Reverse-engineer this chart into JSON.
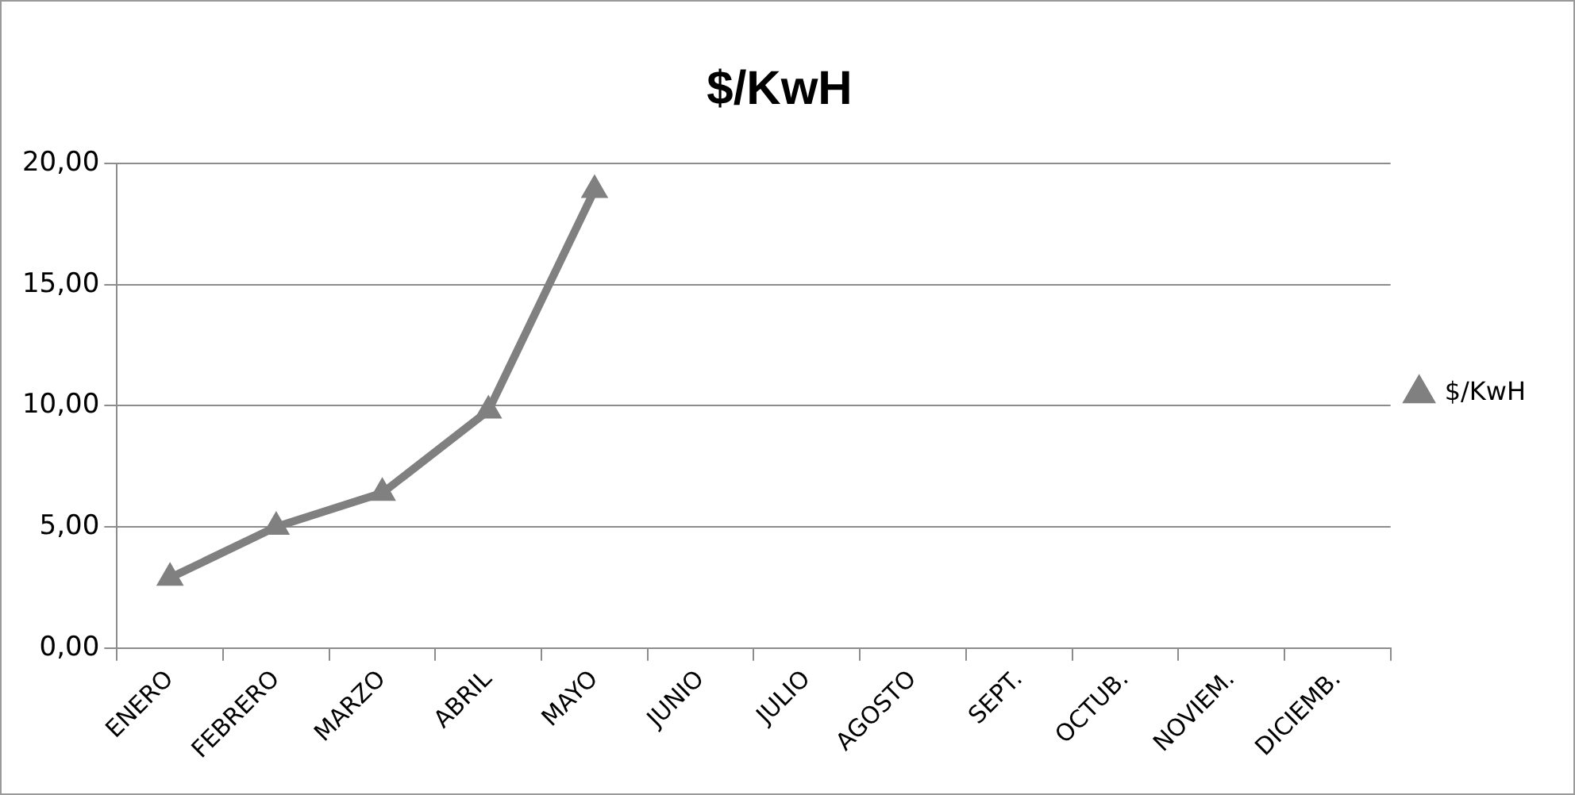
{
  "chart_data": {
    "type": "line",
    "title": "$/KwH",
    "categories": [
      "ENERO",
      "FEBRERO",
      "MARZO",
      "ABRIL",
      "MAYO",
      "JUNIO",
      "JULIO",
      "AGOSTO",
      "SEPT.",
      "OCTUB.",
      "NOVIEM.",
      "DICIEMB."
    ],
    "series": [
      {
        "name": "$/KwH",
        "color": "#808080",
        "values": [
          2.9,
          5.0,
          6.4,
          9.8,
          18.9,
          null,
          null,
          null,
          null,
          null,
          null,
          null
        ]
      }
    ],
    "ylim": [
      0,
      20
    ],
    "yticks": [
      {
        "value": 0,
        "label": "0,00"
      },
      {
        "value": 5,
        "label": "5,00"
      },
      {
        "value": 10,
        "label": "10,00"
      },
      {
        "value": 15,
        "label": "15,00"
      },
      {
        "value": 20,
        "label": "20,00"
      }
    ],
    "grid": "y",
    "legend": "right",
    "marker": "triangle",
    "line_style": "solid"
  }
}
